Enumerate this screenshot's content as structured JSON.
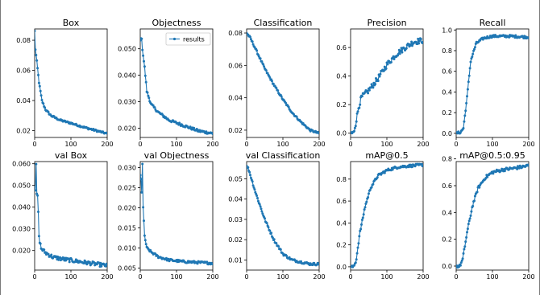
{
  "chart_data": [
    {
      "type": "line",
      "title": "Box",
      "xlim": [
        0,
        200
      ],
      "ylim": [
        0.0155,
        0.0875
      ],
      "xticks": [
        0,
        100,
        200
      ],
      "yticks": [
        0.02,
        0.04,
        0.06,
        0.08
      ],
      "anchors": [
        [
          0,
          0.086
        ],
        [
          2,
          0.074
        ],
        [
          6,
          0.066
        ],
        [
          12,
          0.052
        ],
        [
          20,
          0.04
        ],
        [
          30,
          0.034
        ],
        [
          45,
          0.03
        ],
        [
          70,
          0.027
        ],
        [
          100,
          0.025
        ],
        [
          140,
          0.022
        ],
        [
          170,
          0.02
        ],
        [
          200,
          0.018
        ]
      ],
      "noise": 0.0006
    },
    {
      "type": "line",
      "title": "Objectness",
      "xlim": [
        0,
        200
      ],
      "ylim": [
        0.0165,
        0.0575
      ],
      "xticks": [
        0,
        100,
        200
      ],
      "yticks": [
        0.02,
        0.03,
        0.04,
        0.05
      ],
      "legend": {
        "label": "results",
        "position": "upper right"
      },
      "anchors": [
        [
          0,
          0.053
        ],
        [
          3,
          0.055
        ],
        [
          6,
          0.05
        ],
        [
          12,
          0.043
        ],
        [
          18,
          0.034
        ],
        [
          30,
          0.029
        ],
        [
          50,
          0.026
        ],
        [
          80,
          0.023
        ],
        [
          120,
          0.021
        ],
        [
          160,
          0.019
        ],
        [
          200,
          0.018
        ]
      ],
      "noise": 0.0005
    },
    {
      "type": "line",
      "title": "Classification",
      "xlim": [
        0,
        200
      ],
      "ylim": [
        0.0155,
        0.0825
      ],
      "xticks": [
        0,
        100,
        200
      ],
      "yticks": [
        0.02,
        0.04,
        0.06,
        0.08
      ],
      "anchors": [
        [
          0,
          0.08
        ],
        [
          10,
          0.077
        ],
        [
          25,
          0.07
        ],
        [
          50,
          0.058
        ],
        [
          75,
          0.048
        ],
        [
          100,
          0.039
        ],
        [
          125,
          0.031
        ],
        [
          150,
          0.025
        ],
        [
          175,
          0.02
        ],
        [
          200,
          0.018
        ]
      ],
      "noise": 0.0006
    },
    {
      "type": "line",
      "title": "Precision",
      "xlim": [
        0,
        200
      ],
      "ylim": [
        -0.03,
        0.73
      ],
      "xticks": [
        0,
        100,
        200
      ],
      "yticks": [
        0.0,
        0.2,
        0.4,
        0.6
      ],
      "anchors": [
        [
          0,
          0.0
        ],
        [
          8,
          0.0
        ],
        [
          15,
          0.08
        ],
        [
          22,
          0.18
        ],
        [
          30,
          0.25
        ],
        [
          50,
          0.3
        ],
        [
          75,
          0.38
        ],
        [
          100,
          0.48
        ],
        [
          125,
          0.55
        ],
        [
          150,
          0.6
        ],
        [
          175,
          0.64
        ],
        [
          200,
          0.65
        ]
      ],
      "noise": 0.02
    },
    {
      "type": "line",
      "title": "Recall",
      "xlim": [
        0,
        200
      ],
      "ylim": [
        -0.04,
        1.01
      ],
      "xticks": [
        0,
        100,
        200
      ],
      "yticks": [
        0.0,
        0.2,
        0.4,
        0.6,
        0.8,
        1.0
      ],
      "anchors": [
        [
          0,
          0.0
        ],
        [
          12,
          0.01
        ],
        [
          20,
          0.05
        ],
        [
          30,
          0.35
        ],
        [
          40,
          0.7
        ],
        [
          55,
          0.87
        ],
        [
          75,
          0.92
        ],
        [
          100,
          0.94
        ],
        [
          150,
          0.94
        ],
        [
          200,
          0.93
        ]
      ],
      "noise": 0.012
    },
    {
      "type": "line",
      "title": "val Box",
      "xlim": [
        0,
        200
      ],
      "ylim": [
        0.011,
        0.061
      ],
      "xticks": [
        0,
        100,
        200
      ],
      "yticks": [
        0.02,
        0.03,
        0.04,
        0.05,
        0.06
      ],
      "anchors": [
        [
          0,
          0.05
        ],
        [
          2,
          0.048
        ],
        [
          4,
          0.059
        ],
        [
          6,
          0.046
        ],
        [
          9,
          0.044
        ],
        [
          12,
          0.026
        ],
        [
          18,
          0.021
        ],
        [
          30,
          0.019
        ],
        [
          50,
          0.017
        ],
        [
          80,
          0.016
        ],
        [
          120,
          0.015
        ],
        [
          160,
          0.014
        ],
        [
          200,
          0.013
        ]
      ],
      "noise": 0.0009
    },
    {
      "type": "line",
      "title": "val Objectness",
      "xlim": [
        0,
        200
      ],
      "ylim": [
        0.0045,
        0.0315
      ],
      "xticks": [
        0,
        100,
        200
      ],
      "yticks": [
        0.005,
        0.01,
        0.015,
        0.02,
        0.025,
        0.03
      ],
      "anchors": [
        [
          0,
          0.028
        ],
        [
          2,
          0.027
        ],
        [
          4,
          0.024
        ],
        [
          6,
          0.031
        ],
        [
          8,
          0.02
        ],
        [
          12,
          0.013
        ],
        [
          18,
          0.01
        ],
        [
          30,
          0.009
        ],
        [
          50,
          0.0078
        ],
        [
          80,
          0.007
        ],
        [
          120,
          0.0066
        ],
        [
          160,
          0.0064
        ],
        [
          200,
          0.0062
        ]
      ],
      "noise": 0.0003
    },
    {
      "type": "line",
      "title": "val Classification",
      "xlim": [
        0,
        200
      ],
      "ylim": [
        0.005,
        0.0585
      ],
      "xticks": [
        0,
        100,
        200
      ],
      "yticks": [
        0.01,
        0.02,
        0.03,
        0.04,
        0.05
      ],
      "anchors": [
        [
          0,
          0.056
        ],
        [
          5,
          0.055
        ],
        [
          10,
          0.052
        ],
        [
          25,
          0.043
        ],
        [
          50,
          0.03
        ],
        [
          75,
          0.02
        ],
        [
          100,
          0.013
        ],
        [
          125,
          0.01
        ],
        [
          150,
          0.009
        ],
        [
          175,
          0.008
        ],
        [
          200,
          0.008
        ]
      ],
      "noise": 0.0006
    },
    {
      "type": "line",
      "title": "mAP@0.5",
      "xlim": [
        0,
        200
      ],
      "ylim": [
        -0.03,
        0.96
      ],
      "xticks": [
        0,
        100,
        200
      ],
      "yticks": [
        0.0,
        0.2,
        0.4,
        0.6,
        0.8
      ],
      "anchors": [
        [
          0,
          0.0
        ],
        [
          8,
          0.0
        ],
        [
          15,
          0.05
        ],
        [
          25,
          0.3
        ],
        [
          40,
          0.55
        ],
        [
          55,
          0.72
        ],
        [
          75,
          0.83
        ],
        [
          100,
          0.88
        ],
        [
          130,
          0.91
        ],
        [
          160,
          0.92
        ],
        [
          200,
          0.93
        ]
      ],
      "noise": 0.012
    },
    {
      "type": "line",
      "title": "mAP@0.5:0.95",
      "xlim": [
        0,
        200
      ],
      "ylim": [
        -0.03,
        0.78
      ],
      "xticks": [
        0,
        100,
        200
      ],
      "yticks": [
        0.0,
        0.2,
        0.4,
        0.6,
        0.8
      ],
      "anchors": [
        [
          0,
          0.0
        ],
        [
          10,
          0.0
        ],
        [
          18,
          0.05
        ],
        [
          30,
          0.25
        ],
        [
          45,
          0.45
        ],
        [
          60,
          0.58
        ],
        [
          80,
          0.66
        ],
        [
          100,
          0.7
        ],
        [
          130,
          0.72
        ],
        [
          160,
          0.73
        ],
        [
          200,
          0.75
        ]
      ],
      "noise": 0.012
    }
  ]
}
